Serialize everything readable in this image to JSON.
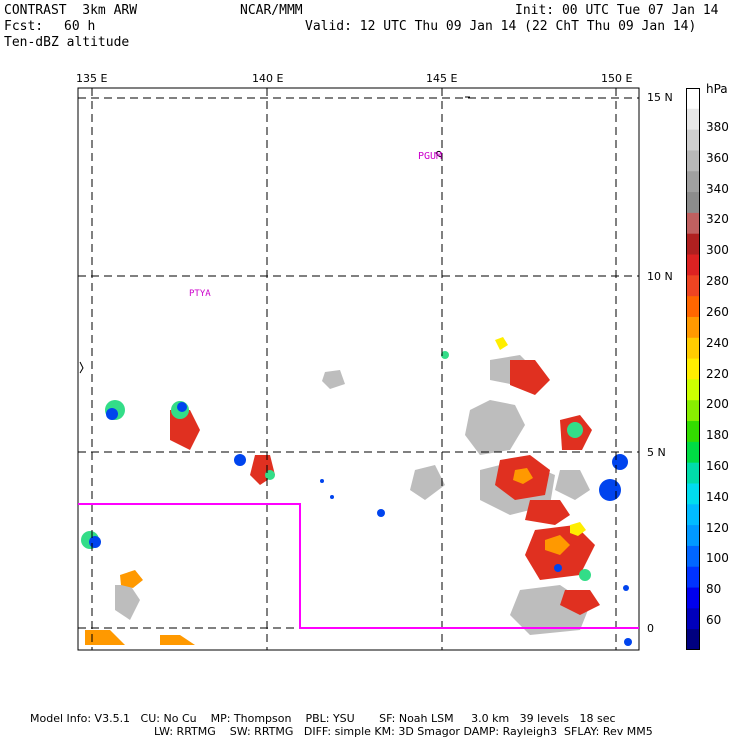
{
  "header": {
    "model": "CONTRAST  3km ARW",
    "org": "NCAR/MMM",
    "init": "Init: 00 UTC Tue 07 Jan 14",
    "fcst_label": "Fcst:",
    "fcst_value": "60 h",
    "valid": "Valid: 12 UTC Thu 09 Jan 14 (22 ChT Thu 09 Jan 14)",
    "field": "Ten-dBZ altitude"
  },
  "map": {
    "lon_labels": [
      "135 E",
      "140 E",
      "145 E",
      "150 E"
    ],
    "lat_labels": [
      "15 N",
      "10 N",
      "5 N",
      "0"
    ],
    "stations": [
      "PGUM",
      "PTYA"
    ],
    "colors": {
      "frame": "#000000",
      "grid": "#000000",
      "domain_box": "#ff00ff",
      "station": "#cc00cc"
    }
  },
  "colorbar": {
    "unit": "hPa",
    "labels": [
      "380",
      "360",
      "340",
      "320",
      "300",
      "280",
      "260",
      "240",
      "220",
      "200",
      "180",
      "160",
      "140",
      "120",
      "100",
      "80",
      "60"
    ],
    "colors": [
      "#ffffff",
      "#e8e8e8",
      "#d0d0d0",
      "#b8b8b8",
      "#a0a0a0",
      "#8c8c8c",
      "#c06060",
      "#b02020",
      "#dd2222",
      "#ee4422",
      "#ff6600",
      "#ff9900",
      "#ffcc00",
      "#ffee00",
      "#ccff00",
      "#88ee00",
      "#33dd00",
      "#00dd44",
      "#00ddaa",
      "#00ddee",
      "#00bbff",
      "#0099ff",
      "#0066ff",
      "#0033ff",
      "#0000ee",
      "#0000bb",
      "#000080"
    ]
  },
  "footer": {
    "line1": "Model Info: V3.5.1   CU: No Cu    MP: Thompson    PBL: YSU       SF: Noah LSM     3.0 km   39 levels   18 sec",
    "line2": "LW: RRTMG    SW: RRTMG   DIFF: simple KM: 3D Smagor DAMP: Rayleigh3  SFLAY: Rev MM5"
  }
}
